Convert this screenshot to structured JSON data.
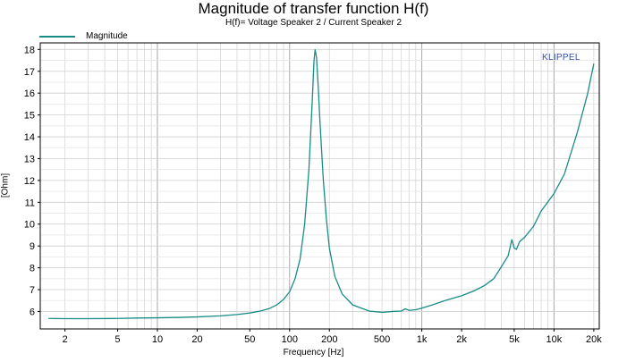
{
  "chart_data": {
    "type": "line",
    "title": "Magnitude of transfer function H(f)",
    "subtitle": "H(f)= Voltage Speaker 2 / Current Speaker 2",
    "xlabel": "Frequency [Hz]",
    "ylabel": "[Ohm]",
    "xscale": "log",
    "xlim": [
      1.3,
      22000
    ],
    "ylim": [
      5.2,
      18.3
    ],
    "grid": true,
    "legend_position": "top-left",
    "watermark": "KLIPPEL",
    "x_ticks": [
      {
        "value": 2,
        "label": "2"
      },
      {
        "value": 5,
        "label": "5"
      },
      {
        "value": 10,
        "label": "10"
      },
      {
        "value": 20,
        "label": "20"
      },
      {
        "value": 50,
        "label": "50"
      },
      {
        "value": 100,
        "label": "100"
      },
      {
        "value": 200,
        "label": "200"
      },
      {
        "value": 500,
        "label": "500"
      },
      {
        "value": 1000,
        "label": "1k"
      },
      {
        "value": 2000,
        "label": "2k"
      },
      {
        "value": 5000,
        "label": "5k"
      },
      {
        "value": 10000,
        "label": "10k"
      },
      {
        "value": 20000,
        "label": "20k"
      }
    ],
    "y_ticks": [
      6,
      7,
      8,
      9,
      10,
      11,
      12,
      13,
      14,
      15,
      16,
      17,
      18
    ],
    "series": [
      {
        "name": "Magnitude",
        "color": "#1a8c86",
        "points": [
          [
            1.5,
            5.68
          ],
          [
            2,
            5.67
          ],
          [
            3,
            5.67
          ],
          [
            5,
            5.68
          ],
          [
            7,
            5.7
          ],
          [
            10,
            5.71
          ],
          [
            15,
            5.73
          ],
          [
            20,
            5.75
          ],
          [
            30,
            5.8
          ],
          [
            40,
            5.86
          ],
          [
            50,
            5.93
          ],
          [
            60,
            6.02
          ],
          [
            70,
            6.13
          ],
          [
            80,
            6.3
          ],
          [
            90,
            6.55
          ],
          [
            100,
            6.9
          ],
          [
            110,
            7.5
          ],
          [
            120,
            8.4
          ],
          [
            130,
            10.0
          ],
          [
            140,
            12.5
          ],
          [
            148,
            15.5
          ],
          [
            153,
            17.5
          ],
          [
            156,
            18.0
          ],
          [
            160,
            17.6
          ],
          [
            165,
            16.2
          ],
          [
            170,
            14.6
          ],
          [
            180,
            12.0
          ],
          [
            190,
            10.2
          ],
          [
            200,
            8.9
          ],
          [
            220,
            7.6
          ],
          [
            250,
            6.8
          ],
          [
            300,
            6.3
          ],
          [
            400,
            6.02
          ],
          [
            500,
            5.96
          ],
          [
            600,
            6.0
          ],
          [
            700,
            6.02
          ],
          [
            750,
            6.12
          ],
          [
            800,
            6.05
          ],
          [
            900,
            6.08
          ],
          [
            1000,
            6.15
          ],
          [
            1200,
            6.3
          ],
          [
            1500,
            6.5
          ],
          [
            2000,
            6.72
          ],
          [
            2500,
            6.95
          ],
          [
            3000,
            7.2
          ],
          [
            3500,
            7.5
          ],
          [
            4000,
            8.05
          ],
          [
            4500,
            8.55
          ],
          [
            4800,
            9.3
          ],
          [
            5000,
            8.9
          ],
          [
            5200,
            8.85
          ],
          [
            5500,
            9.2
          ],
          [
            6000,
            9.4
          ],
          [
            7000,
            9.9
          ],
          [
            8000,
            10.6
          ],
          [
            10000,
            11.4
          ],
          [
            12000,
            12.3
          ],
          [
            15000,
            14.2
          ],
          [
            18000,
            16.0
          ],
          [
            20000,
            17.35
          ]
        ]
      }
    ]
  }
}
